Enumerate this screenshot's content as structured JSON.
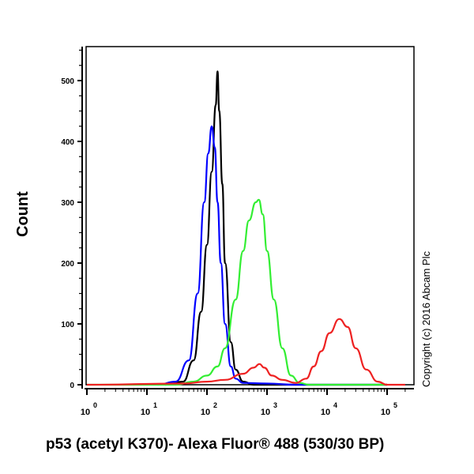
{
  "chart_data": {
    "type": "line",
    "title": "",
    "xlabel": "p53 (acetyl K370)- Alexa Fluor® 488 (530/30 BP)",
    "ylabel": "Count",
    "xscale": "log",
    "xlim": [
      1,
      200000
    ],
    "ylim": [
      0,
      560
    ],
    "x_tick_labels": [
      "10^0",
      "10^1",
      "10^2",
      "10^3",
      "10^4",
      "10^5"
    ],
    "y_tick_labels": [
      "0",
      "100",
      "200",
      "300",
      "400",
      "500"
    ],
    "grid": false,
    "legend": "none",
    "annotation": "Copyright (c) 2016 Abcam Plc",
    "series": [
      {
        "name": "black",
        "color": "#000000",
        "x": [
          20,
          40,
          60,
          80,
          100,
          120,
          140,
          150,
          160,
          180,
          200,
          250,
          300,
          400,
          600,
          1000,
          100000
        ],
        "y": [
          0,
          5,
          40,
          120,
          230,
          350,
          460,
          515,
          450,
          330,
          200,
          70,
          25,
          5,
          0,
          0,
          0
        ]
      },
      {
        "name": "blue",
        "color": "#0000ff",
        "x": [
          15,
          30,
          50,
          70,
          90,
          105,
          120,
          135,
          150,
          170,
          200,
          250,
          300,
          400,
          1000,
          3000,
          100000
        ],
        "y": [
          0,
          5,
          40,
          150,
          300,
          380,
          425,
          390,
          300,
          200,
          100,
          30,
          10,
          3,
          2,
          0,
          0
        ]
      },
      {
        "name": "green",
        "color": "#33ee33",
        "x": [
          1,
          30,
          60,
          100,
          150,
          200,
          300,
          400,
          500,
          650,
          730,
          850,
          1000,
          1300,
          1800,
          2500,
          3500,
          5000,
          100000
        ],
        "y": [
          0,
          0,
          5,
          15,
          30,
          60,
          140,
          220,
          270,
          300,
          304,
          280,
          220,
          140,
          60,
          15,
          3,
          0,
          0
        ]
      },
      {
        "name": "red",
        "color": "#ee2222",
        "x": [
          1,
          40,
          100,
          200,
          400,
          600,
          750,
          900,
          1200,
          1800,
          3000,
          4500,
          6000,
          8000,
          11000,
          16000,
          22000,
          30000,
          45000,
          70000,
          100000,
          200000
        ],
        "y": [
          0,
          2,
          5,
          8,
          18,
          28,
          34,
          28,
          15,
          8,
          3,
          10,
          30,
          55,
          85,
          108,
          95,
          60,
          25,
          5,
          0,
          0
        ]
      }
    ]
  }
}
